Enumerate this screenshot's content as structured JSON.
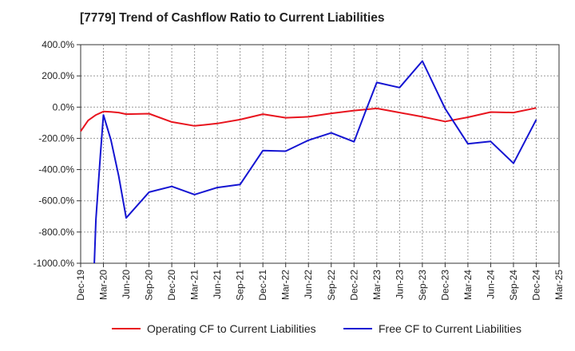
{
  "chart_data": {
    "type": "line",
    "title": "[7779]  Trend of Cashflow Ratio to Current Liabilities",
    "xlabel": "",
    "ylabel": "",
    "ylim": [
      -1000,
      400
    ],
    "grid": true,
    "legend_position": "bottom",
    "x_tick_labels": [
      "Dec-19",
      "Mar-20",
      "Jun-20",
      "Sep-20",
      "Dec-20",
      "Mar-21",
      "Jun-21",
      "Sep-21",
      "Dec-21",
      "Mar-22",
      "Jun-22",
      "Sep-22",
      "Dec-22",
      "Mar-23",
      "Jun-23",
      "Sep-23",
      "Dec-23",
      "Mar-24",
      "Jun-24",
      "Sep-24",
      "Dec-24",
      "Mar-25"
    ],
    "y_tick_labels": [
      "400.0%",
      "200.0%",
      "0.0%",
      "-200.0%",
      "-400.0%",
      "-600.0%",
      "-800.0%",
      "-1000.0%"
    ],
    "y_ticks": [
      400,
      200,
      0,
      -200,
      -400,
      -600,
      -800,
      -1000
    ],
    "series": [
      {
        "name": "Operating CF to Current Liabilities",
        "color": "#e8141e",
        "points": [
          [
            0,
            -155
          ],
          [
            0.33,
            -85
          ],
          [
            0.67,
            -50
          ],
          [
            1,
            -28
          ],
          [
            1.33,
            -30
          ],
          [
            1.67,
            -35
          ],
          [
            2,
            -45
          ],
          [
            3,
            -42
          ],
          [
            4,
            -95
          ],
          [
            5,
            -120
          ],
          [
            6,
            -105
          ],
          [
            7,
            -80
          ],
          [
            8,
            -45
          ],
          [
            9,
            -68
          ],
          [
            10,
            -62
          ],
          [
            11,
            -40
          ],
          [
            12,
            -22
          ],
          [
            13,
            -8
          ],
          [
            14,
            -35
          ],
          [
            15,
            -62
          ],
          [
            16,
            -92
          ],
          [
            17,
            -65
          ],
          [
            18,
            -32
          ],
          [
            19,
            -35
          ],
          [
            20,
            -5
          ]
        ]
      },
      {
        "name": "Free CF to Current Liabilities",
        "color": "#1414d2",
        "points": [
          [
            0.6,
            -1000
          ],
          [
            0.67,
            -720
          ],
          [
            0.87,
            -300
          ],
          [
            1,
            -50
          ],
          [
            1.33,
            -210
          ],
          [
            1.67,
            -440
          ],
          [
            2,
            -710
          ],
          [
            3,
            -545
          ],
          [
            4,
            -508
          ],
          [
            5,
            -560
          ],
          [
            6,
            -515
          ],
          [
            7,
            -495
          ],
          [
            8,
            -278
          ],
          [
            9,
            -282
          ],
          [
            10,
            -212
          ],
          [
            11,
            -165
          ],
          [
            12,
            -222
          ],
          [
            12.5,
            -30
          ],
          [
            13,
            158
          ],
          [
            14,
            125
          ],
          [
            15,
            295
          ],
          [
            16,
            -10
          ],
          [
            17,
            -235
          ],
          [
            18,
            -220
          ],
          [
            19,
            -360
          ],
          [
            20,
            -80
          ]
        ]
      }
    ]
  }
}
